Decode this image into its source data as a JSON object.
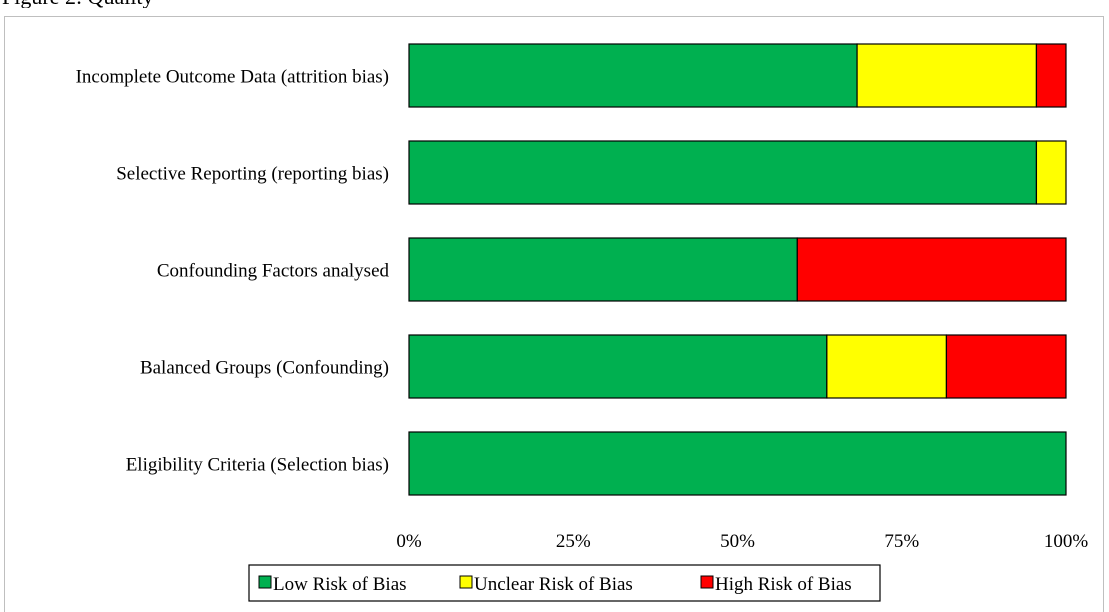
{
  "header": {
    "partial_text": "Figure 2: Quality"
  },
  "chart_data": {
    "type": "bar",
    "orientation": "horizontal",
    "stacked": "percent",
    "categories": [
      "Incomplete Outcome Data (attrition bias)",
      "Selective Reporting (reporting bias)",
      "Confounding Factors analysed",
      "Balanced Groups (Confounding)",
      "Eligibility Criteria (Selection bias)"
    ],
    "series": [
      {
        "name": "Low Risk of Bias",
        "color": "#00b050",
        "values": [
          68.2,
          95.5,
          59.1,
          63.6,
          100
        ]
      },
      {
        "name": "Unclear Risk of Bias",
        "color": "#ffff00",
        "values": [
          27.3,
          4.5,
          0,
          18.2,
          0
        ]
      },
      {
        "name": "High Risk of Bias",
        "color": "#ff0000",
        "values": [
          4.5,
          0,
          40.9,
          18.2,
          0
        ]
      }
    ],
    "xlim": [
      0,
      100
    ],
    "x_ticks": [
      "0%",
      "25%",
      "50%",
      "75%",
      "100%"
    ],
    "grid": false,
    "legend_position": "bottom",
    "title": "",
    "xlabel": "",
    "ylabel": ""
  }
}
